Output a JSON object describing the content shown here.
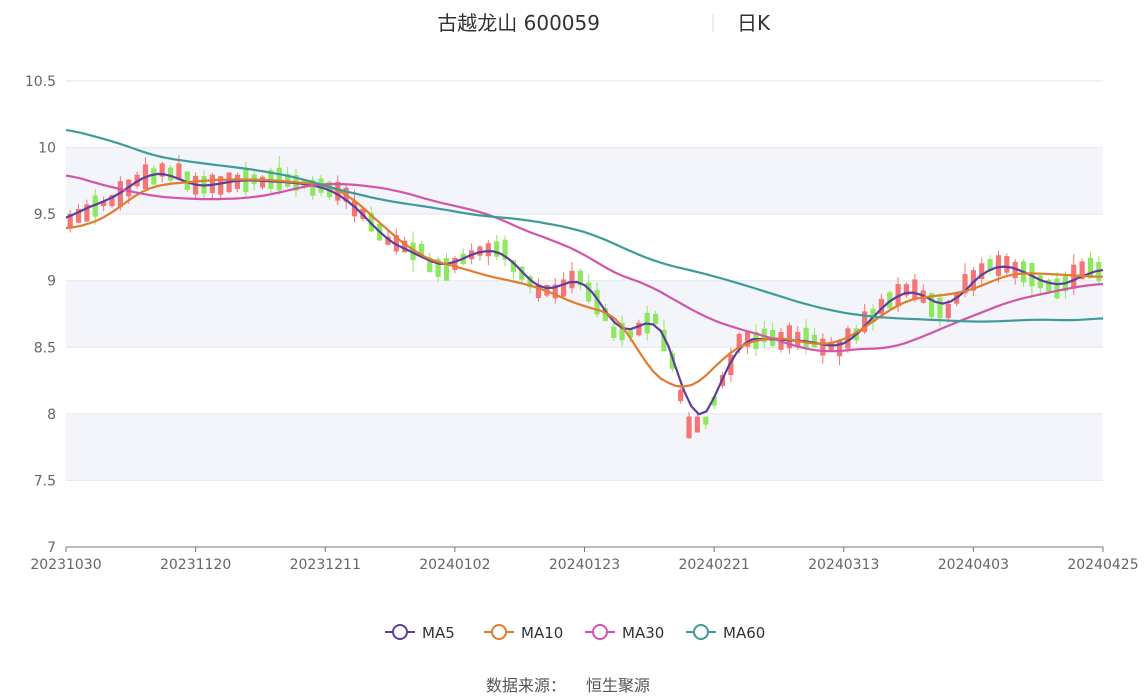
{
  "chart_data": {
    "type": "candlestick",
    "title": "古越龙山 600059",
    "period": "日K",
    "source_label": "数据来源：",
    "source_name": "恒生聚源",
    "ylim": [
      7,
      10.5
    ],
    "y_ticks": [
      7,
      7.5,
      8,
      8.5,
      9,
      9.5,
      10,
      10.5
    ],
    "x_tick_labels": [
      "20231030",
      "20231120",
      "20231211",
      "20240102",
      "20240123",
      "20240221",
      "20240313",
      "20240403",
      "20240425"
    ],
    "num_days": 124,
    "up_color": "#f47575",
    "down_color": "#8de85e",
    "grid_band_color": "#f3f5fa",
    "legend": [
      {
        "name": "MA5",
        "color": "#5b3f9e"
      },
      {
        "name": "MA10",
        "color": "#e07d2e"
      },
      {
        "name": "MA30",
        "color": "#d255a8"
      },
      {
        "name": "MA60",
        "color": "#3f9a9a"
      }
    ],
    "ma_series": {
      "MA5": [
        [
          0,
          9.45
        ],
        [
          3,
          9.57
        ],
        [
          6,
          9.6
        ],
        [
          8,
          9.7
        ],
        [
          10,
          9.78
        ],
        [
          12,
          9.82
        ],
        [
          14,
          9.8
        ],
        [
          16,
          9.72
        ],
        [
          18,
          9.7
        ],
        [
          20,
          9.73
        ],
        [
          22,
          9.75
        ],
        [
          24,
          9.76
        ],
        [
          26,
          9.75
        ],
        [
          28,
          9.74
        ],
        [
          30,
          9.74
        ],
        [
          32,
          9.72
        ],
        [
          34,
          9.7
        ],
        [
          36,
          9.65
        ],
        [
          38,
          9.55
        ],
        [
          40,
          9.44
        ],
        [
          42,
          9.3
        ],
        [
          44,
          9.24
        ],
        [
          46,
          9.22
        ],
        [
          48,
          9.12
        ],
        [
          50,
          9.1
        ],
        [
          52,
          9.17
        ],
        [
          54,
          9.22
        ],
        [
          56,
          9.24
        ],
        [
          58,
          9.2
        ],
        [
          60,
          9.05
        ],
        [
          62,
          8.92
        ],
        [
          64,
          8.93
        ],
        [
          66,
          9.0
        ],
        [
          68,
          9.03
        ],
        [
          70,
          8.85
        ],
        [
          72,
          8.62
        ],
        [
          74,
          8.6
        ],
        [
          76,
          8.7
        ],
        [
          78,
          8.73
        ],
        [
          80,
          8.4
        ],
        [
          82,
          7.88
        ],
        [
          84,
          7.95
        ],
        [
          86,
          8.25
        ],
        [
          88,
          8.55
        ],
        [
          90,
          8.56
        ],
        [
          92,
          8.57
        ],
        [
          94,
          8.55
        ],
        [
          96,
          8.55
        ],
        [
          98,
          8.55
        ],
        [
          100,
          8.5
        ],
        [
          102,
          8.5
        ],
        [
          104,
          8.6
        ],
        [
          106,
          8.75
        ],
        [
          108,
          8.85
        ],
        [
          110,
          8.93
        ],
        [
          112,
          8.93
        ],
        [
          114,
          8.82
        ],
        [
          116,
          8.78
        ],
        [
          118,
          8.95
        ],
        [
          120,
          9.05
        ],
        [
          122,
          9.12
        ],
        [
          124,
          9.12
        ],
        [
          126,
          9.05
        ],
        [
          128,
          9.0
        ],
        [
          130,
          8.95
        ],
        [
          132,
          8.98
        ],
        [
          134,
          9.08
        ],
        [
          136,
          9.08
        ]
      ],
      "MA10": [
        [
          0,
          9.39
        ],
        [
          3,
          9.42
        ],
        [
          6,
          9.5
        ],
        [
          8,
          9.6
        ],
        [
          10,
          9.68
        ],
        [
          12,
          9.72
        ],
        [
          14,
          9.73
        ],
        [
          16,
          9.74
        ],
        [
          18,
          9.75
        ],
        [
          20,
          9.76
        ],
        [
          22,
          9.76
        ],
        [
          24,
          9.76
        ],
        [
          26,
          9.76
        ],
        [
          28,
          9.75
        ],
        [
          30,
          9.74
        ],
        [
          32,
          9.73
        ],
        [
          34,
          9.72
        ],
        [
          36,
          9.68
        ],
        [
          38,
          9.6
        ],
        [
          40,
          9.5
        ],
        [
          42,
          9.38
        ],
        [
          44,
          9.3
        ],
        [
          46,
          9.2
        ],
        [
          48,
          9.15
        ],
        [
          50,
          9.12
        ],
        [
          52,
          9.1
        ],
        [
          54,
          9.05
        ],
        [
          56,
          9.03
        ],
        [
          58,
          9.0
        ],
        [
          60,
          8.98
        ],
        [
          62,
          8.95
        ],
        [
          64,
          8.9
        ],
        [
          66,
          8.85
        ],
        [
          68,
          8.8
        ],
        [
          70,
          8.78
        ],
        [
          72,
          8.75
        ],
        [
          74,
          8.6
        ],
        [
          76,
          8.35
        ],
        [
          78,
          8.25
        ],
        [
          80,
          8.2
        ],
        [
          82,
          8.18
        ],
        [
          84,
          8.28
        ],
        [
          86,
          8.42
        ],
        [
          88,
          8.5
        ],
        [
          90,
          8.55
        ],
        [
          92,
          8.57
        ],
        [
          94,
          8.57
        ],
        [
          96,
          8.55
        ],
        [
          98,
          8.52
        ],
        [
          100,
          8.52
        ],
        [
          102,
          8.55
        ],
        [
          104,
          8.62
        ],
        [
          106,
          8.7
        ],
        [
          108,
          8.78
        ],
        [
          110,
          8.85
        ],
        [
          112,
          8.88
        ],
        [
          114,
          8.88
        ],
        [
          116,
          8.9
        ],
        [
          118,
          8.92
        ],
        [
          120,
          8.95
        ],
        [
          122,
          9.02
        ],
        [
          124,
          9.05
        ],
        [
          126,
          9.06
        ],
        [
          128,
          9.05
        ],
        [
          130,
          9.05
        ],
        [
          132,
          9.04
        ],
        [
          134,
          9.03
        ],
        [
          136,
          9.03
        ]
      ],
      "MA30": [
        [
          0,
          9.8
        ],
        [
          6,
          9.7
        ],
        [
          12,
          9.63
        ],
        [
          18,
          9.61
        ],
        [
          24,
          9.62
        ],
        [
          28,
          9.66
        ],
        [
          32,
          9.72
        ],
        [
          36,
          9.73
        ],
        [
          40,
          9.71
        ],
        [
          44,
          9.67
        ],
        [
          48,
          9.6
        ],
        [
          52,
          9.55
        ],
        [
          56,
          9.49
        ],
        [
          60,
          9.38
        ],
        [
          64,
          9.3
        ],
        [
          68,
          9.2
        ],
        [
          72,
          9.05
        ],
        [
          76,
          8.98
        ],
        [
          80,
          8.85
        ],
        [
          84,
          8.72
        ],
        [
          88,
          8.64
        ],
        [
          92,
          8.58
        ],
        [
          96,
          8.5
        ],
        [
          100,
          8.46
        ],
        [
          104,
          8.49
        ],
        [
          108,
          8.49
        ],
        [
          112,
          8.57
        ],
        [
          116,
          8.67
        ],
        [
          120,
          8.76
        ],
        [
          124,
          8.85
        ],
        [
          128,
          8.9
        ],
        [
          132,
          8.95
        ],
        [
          136,
          8.98
        ]
      ],
      "MA60": [
        [
          0,
          10.14
        ],
        [
          6,
          10.05
        ],
        [
          12,
          9.93
        ],
        [
          18,
          9.88
        ],
        [
          24,
          9.84
        ],
        [
          30,
          9.78
        ],
        [
          36,
          9.68
        ],
        [
          42,
          9.6
        ],
        [
          48,
          9.55
        ],
        [
          54,
          9.49
        ],
        [
          60,
          9.46
        ],
        [
          66,
          9.4
        ],
        [
          70,
          9.33
        ],
        [
          74,
          9.22
        ],
        [
          78,
          9.13
        ],
        [
          84,
          9.05
        ],
        [
          90,
          8.95
        ],
        [
          96,
          8.84
        ],
        [
          100,
          8.78
        ],
        [
          104,
          8.74
        ],
        [
          108,
          8.72
        ],
        [
          112,
          8.71
        ],
        [
          116,
          8.7
        ],
        [
          120,
          8.69
        ],
        [
          124,
          8.7
        ],
        [
          128,
          8.71
        ],
        [
          132,
          8.7
        ],
        [
          136,
          8.72
        ]
      ]
    }
  }
}
